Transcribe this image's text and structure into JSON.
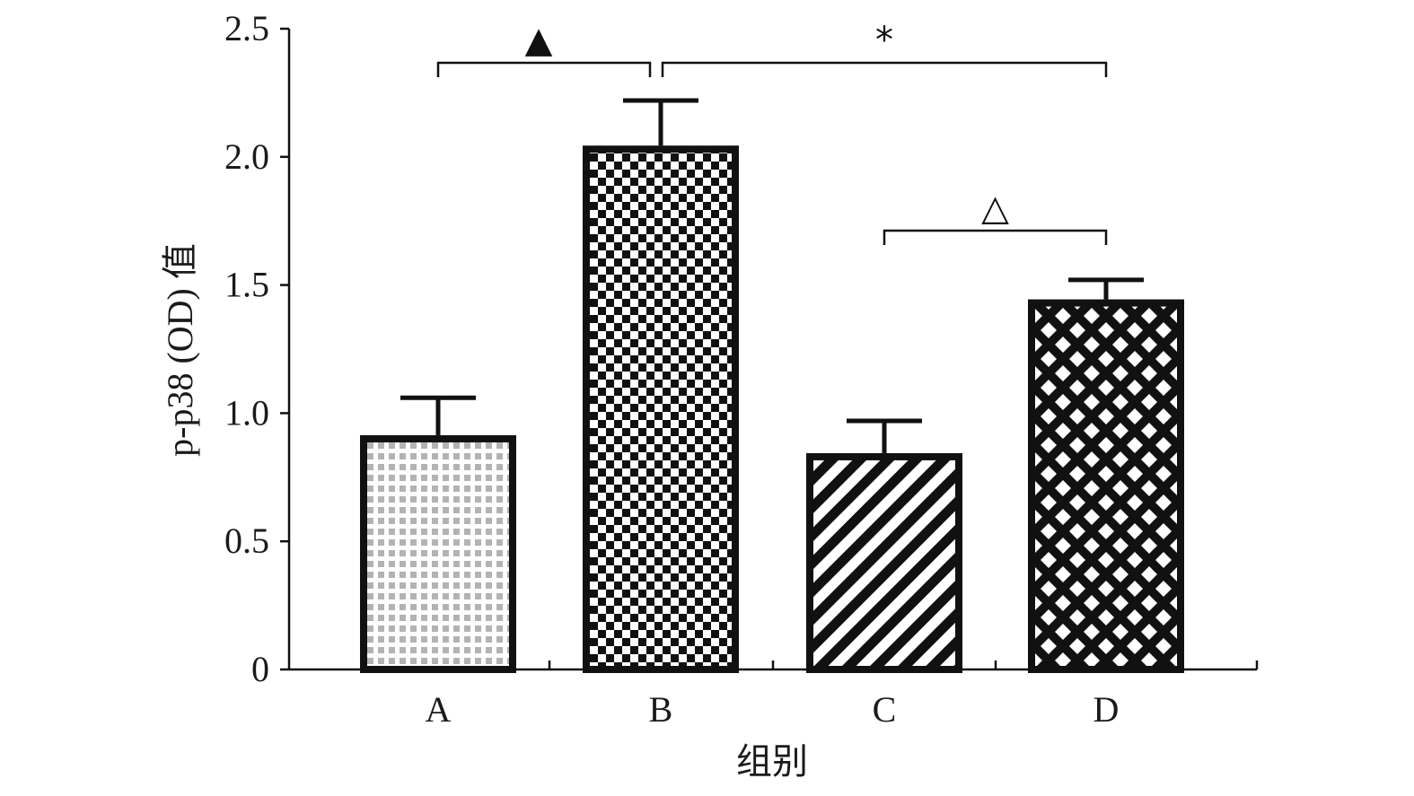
{
  "chart_data": {
    "type": "bar",
    "title": "",
    "xlabel": "组别",
    "ylabel": "p-p38 (OD) 值",
    "categories": [
      "A",
      "B",
      "C",
      "D"
    ],
    "values": [
      0.9,
      2.03,
      0.83,
      1.43
    ],
    "errors": [
      0.16,
      0.19,
      0.14,
      0.09
    ],
    "ylim": [
      0,
      2.5
    ],
    "yticks": [
      0,
      0.5,
      1.0,
      1.5,
      2.0,
      2.5
    ],
    "ytick_labels": [
      "0",
      "0.5",
      "1.0",
      "1.5",
      "2.0",
      "2.5"
    ],
    "patterns": [
      "fine-dots",
      "checker",
      "diagonal-stripes",
      "diamond-lattice"
    ],
    "grid": false,
    "legend": "none",
    "significance": [
      {
        "from": "A",
        "to": "B",
        "symbol": "▲"
      },
      {
        "from": "B",
        "to": "D",
        "symbol": "*"
      },
      {
        "from": "C",
        "to": "D",
        "symbol": "△"
      }
    ]
  },
  "colors": {
    "bar_edge": "#111111",
    "axis": "#111111",
    "dots": "#b3b3b3",
    "fill_dark": "#111111",
    "background": "#ffffff"
  }
}
